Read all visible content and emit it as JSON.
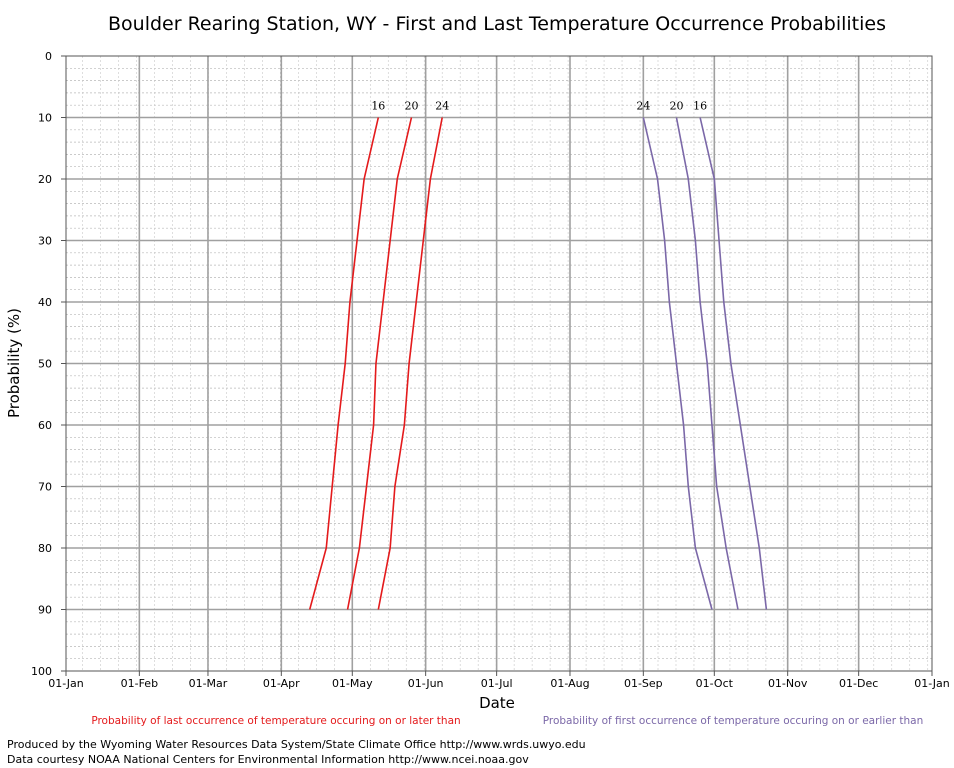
{
  "chart_data": {
    "type": "line",
    "title": "Boulder Rearing Station, WY - First and Last Temperature Occurrence Probabilities",
    "xlabel": "Date",
    "ylabel": "Probability (%)",
    "x_tick_labels": [
      "01-Jan",
      "01-Feb",
      "01-Mar",
      "01-Apr",
      "01-May",
      "01-Jun",
      "01-Jul",
      "01-Aug",
      "01-Sep",
      "01-Oct",
      "01-Nov",
      "01-Dec",
      "01-Jan"
    ],
    "y_tick_labels": [
      "0",
      "10",
      "20",
      "30",
      "40",
      "50",
      "60",
      "70",
      "80",
      "90",
      "100"
    ],
    "ylim": [
      0,
      100
    ],
    "y_inverted": true,
    "grid": true,
    "colors": {
      "last": "#e41a1c",
      "first": "#7b68a8"
    },
    "series": [
      {
        "name": "16",
        "group": "last",
        "points": [
          [
            "2024-04-13",
            90
          ],
          [
            "2024-04-20",
            80
          ],
          [
            "2024-04-25",
            60
          ],
          [
            "2024-04-28",
            50
          ],
          [
            "2024-04-30",
            40
          ],
          [
            "2024-05-03",
            30
          ],
          [
            "2024-05-06",
            20
          ],
          [
            "2024-05-12",
            10
          ]
        ]
      },
      {
        "name": "20",
        "group": "last",
        "points": [
          [
            "2024-04-29",
            90
          ],
          [
            "2024-05-04",
            80
          ],
          [
            "2024-05-07",
            70
          ],
          [
            "2024-05-10",
            60
          ],
          [
            "2024-05-11",
            50
          ],
          [
            "2024-05-14",
            40
          ],
          [
            "2024-05-17",
            30
          ],
          [
            "2024-05-20",
            20
          ],
          [
            "2024-05-26",
            10
          ]
        ]
      },
      {
        "name": "24",
        "group": "last",
        "points": [
          [
            "2024-05-12",
            90
          ],
          [
            "2024-05-17",
            80
          ],
          [
            "2024-05-19",
            70
          ],
          [
            "2024-05-23",
            60
          ],
          [
            "2024-05-25",
            50
          ],
          [
            "2024-05-28",
            40
          ],
          [
            "2024-05-31",
            30
          ],
          [
            "2024-06-03",
            20
          ],
          [
            "2024-06-08",
            10
          ]
        ]
      },
      {
        "name": "24",
        "group": "first",
        "points": [
          [
            "2024-09-01",
            10
          ],
          [
            "2024-09-07",
            20
          ],
          [
            "2024-09-10",
            30
          ],
          [
            "2024-09-12",
            40
          ],
          [
            "2024-09-15",
            50
          ],
          [
            "2024-09-18",
            60
          ],
          [
            "2024-09-20",
            70
          ],
          [
            "2024-09-23",
            80
          ],
          [
            "2024-09-30",
            90
          ]
        ]
      },
      {
        "name": "20",
        "group": "first",
        "points": [
          [
            "2024-09-15",
            10
          ],
          [
            "2024-09-20",
            20
          ],
          [
            "2024-09-23",
            30
          ],
          [
            "2024-09-25",
            40
          ],
          [
            "2024-09-28",
            50
          ],
          [
            "2024-09-30",
            60
          ],
          [
            "2024-10-02",
            70
          ],
          [
            "2024-10-06",
            80
          ],
          [
            "2024-10-11",
            90
          ]
        ]
      },
      {
        "name": "16",
        "group": "first",
        "points": [
          [
            "2024-09-25",
            10
          ],
          [
            "2024-10-01",
            20
          ],
          [
            "2024-10-05",
            40
          ],
          [
            "2024-10-08",
            50
          ],
          [
            "2024-10-12",
            60
          ],
          [
            "2024-10-16",
            70
          ],
          [
            "2024-10-20",
            80
          ],
          [
            "2024-10-23",
            90
          ]
        ]
      }
    ],
    "legend": {
      "last": "Probability of last occurrence of temperature occuring on or later than",
      "first": "Probability of first occurrence of temperature occuring on or earlier than"
    }
  },
  "credits": {
    "line1": "Produced by the Wyoming Water Resources Data System/State Climate Office http://www.wrds.uwyo.edu",
    "line2": "Data courtesy NOAA National Centers for Environmental Information http://www.ncei.noaa.gov"
  }
}
